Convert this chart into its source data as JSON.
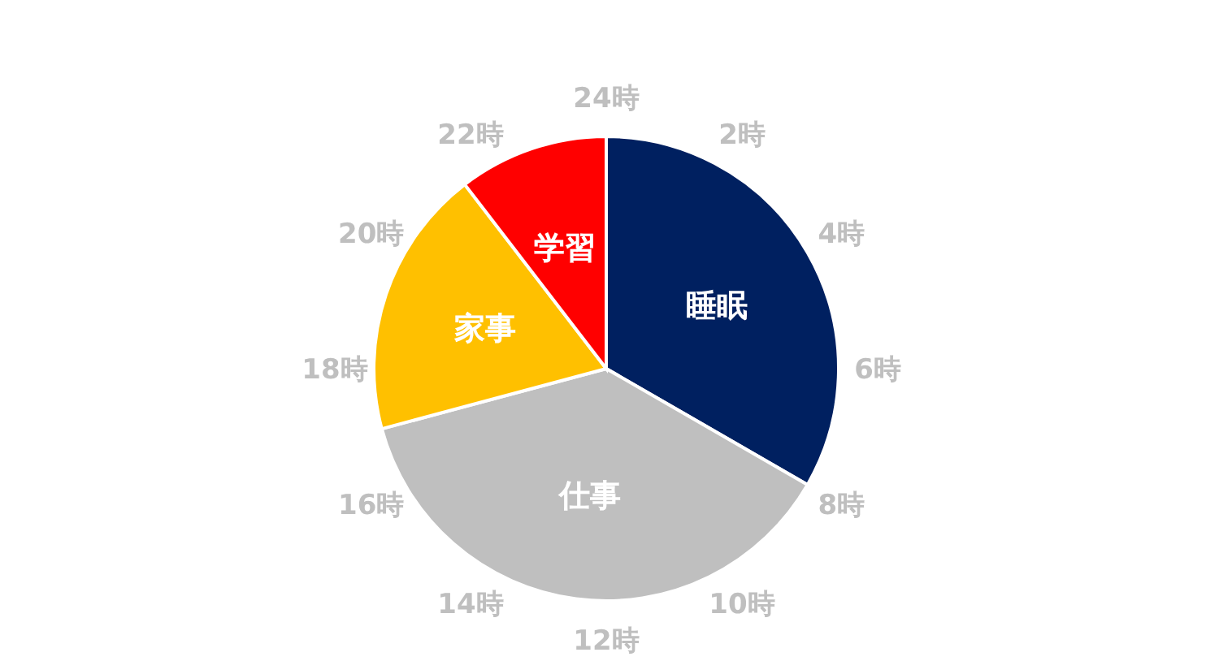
{
  "chart_data": {
    "type": "pie",
    "categories": [
      "睡眠",
      "仕事",
      "家事",
      "学習"
    ],
    "values": [
      33.33,
      37.5,
      18.75,
      10.42
    ],
    "colors": [
      "#002060",
      "#bfbfbf",
      "#ffc000",
      "#ff0000"
    ],
    "annotations": [
      "24時",
      "2時",
      "4時",
      "6時",
      "8時",
      "10時",
      "12時",
      "14時",
      "16時",
      "18時",
      "20時",
      "22時"
    ],
    "legend": false
  }
}
